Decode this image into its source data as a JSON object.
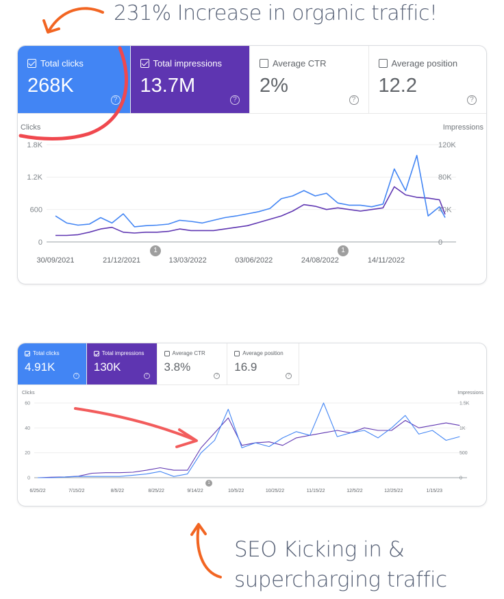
{
  "annotations": {
    "top_caption": "231% Increase in organic traffic!",
    "bottom_caption_line1": "SEO Kicking in &",
    "bottom_caption_line2": "supercharging traffic",
    "arrow_color": "#f26522",
    "highlight_color": "#f0484e",
    "caption_color": "#566075"
  },
  "colors": {
    "clicks": "#4285f4",
    "impressions": "#5e35b1"
  },
  "report1": {
    "metrics": [
      {
        "label": "Total clicks",
        "value": "268K",
        "checked": true,
        "help_icon": "help-circle-icon"
      },
      {
        "label": "Total impressions",
        "value": "13.7M",
        "checked": true,
        "help_icon": "help-circle-icon"
      },
      {
        "label": "Average CTR",
        "value": "2%",
        "checked": false,
        "help_icon": "help-circle-icon"
      },
      {
        "label": "Average position",
        "value": "12.2",
        "checked": false,
        "help_icon": "help-circle-icon"
      }
    ],
    "help_glyph": "?",
    "annotation_badges": [
      "1",
      "1"
    ]
  },
  "report2": {
    "metrics": [
      {
        "label": "Total clicks",
        "value": "4.91K",
        "checked": true
      },
      {
        "label": "Total impressions",
        "value": "130K",
        "checked": true
      },
      {
        "label": "Average CTR",
        "value": "3.8%",
        "checked": false
      },
      {
        "label": "Average position",
        "value": "16.9",
        "checked": false
      }
    ],
    "help_glyph": "?",
    "annotation_badges": [
      "1"
    ]
  },
  "chart_data": [
    {
      "type": "line",
      "ylabel": "Clicks",
      "y2label": "Impressions",
      "ylim": [
        0,
        1800
      ],
      "y2lim": [
        0,
        120000
      ],
      "yticks": [
        "0",
        "600",
        "1.2K",
        "1.8K"
      ],
      "y2ticks": [
        "0",
        "40K",
        "80K",
        "120K"
      ],
      "xticks": [
        "30/09/2021",
        "21/12/2021",
        "13/03/2022",
        "03/06/2022",
        "24/08/2022",
        "14/11/2022"
      ],
      "grid": true,
      "x": [
        "2021-09-30",
        "2021-10-14",
        "2021-10-28",
        "2021-11-11",
        "2021-11-25",
        "2021-12-09",
        "2021-12-23",
        "2022-01-06",
        "2022-01-20",
        "2022-02-03",
        "2022-02-17",
        "2022-03-03",
        "2022-03-17",
        "2022-03-31",
        "2022-04-14",
        "2022-04-28",
        "2022-05-12",
        "2022-05-26",
        "2022-06-09",
        "2022-06-23",
        "2022-07-07",
        "2022-07-21",
        "2022-08-04",
        "2022-08-18",
        "2022-09-01",
        "2022-09-15",
        "2022-09-29",
        "2022-10-13",
        "2022-10-27",
        "2022-11-10",
        "2022-11-24",
        "2022-12-08",
        "2022-12-22",
        "2023-01-05",
        "2023-01-19",
        "2023-01-26"
      ],
      "series": [
        {
          "name": "Clicks",
          "axis": "left",
          "values": [
            480,
            350,
            310,
            330,
            450,
            350,
            520,
            280,
            300,
            310,
            330,
            400,
            380,
            350,
            400,
            450,
            480,
            520,
            560,
            620,
            800,
            850,
            950,
            850,
            900,
            720,
            680,
            680,
            650,
            700,
            1350,
            950,
            1600,
            480,
            650,
            450
          ]
        },
        {
          "name": "Impressions",
          "axis": "right",
          "values": [
            8000,
            8000,
            9000,
            12000,
            16000,
            18000,
            12000,
            11000,
            12000,
            12000,
            13000,
            16000,
            14000,
            14000,
            14000,
            16000,
            18000,
            20000,
            24000,
            28000,
            32000,
            38000,
            46000,
            44000,
            40000,
            42000,
            40000,
            38000,
            40000,
            42000,
            68000,
            58000,
            55000,
            54000,
            52000,
            34000
          ]
        }
      ]
    },
    {
      "type": "line",
      "ylabel": "Clicks",
      "y2label": "Impressions",
      "ylim": [
        0,
        60
      ],
      "y2lim": [
        0,
        1500
      ],
      "yticks": [
        "0",
        "20",
        "40",
        "60"
      ],
      "y2ticks": [
        "0",
        "500",
        "1K",
        "1.5K"
      ],
      "xticks": [
        "6/25/22",
        "7/15/22",
        "8/5/22",
        "8/25/22",
        "9/14/22",
        "10/5/22",
        "10/25/22",
        "11/15/22",
        "12/5/22",
        "12/25/22",
        "1/15/23"
      ],
      "grid": true,
      "x": [
        "2022-06-25",
        "2022-07-02",
        "2022-07-09",
        "2022-07-16",
        "2022-07-23",
        "2022-07-30",
        "2022-08-06",
        "2022-08-13",
        "2022-08-20",
        "2022-08-27",
        "2022-09-03",
        "2022-09-10",
        "2022-09-17",
        "2022-09-24",
        "2022-10-01",
        "2022-10-08",
        "2022-10-15",
        "2022-10-22",
        "2022-10-29",
        "2022-11-05",
        "2022-11-12",
        "2022-11-19",
        "2022-11-26",
        "2022-12-03",
        "2022-12-10",
        "2022-12-17",
        "2022-12-24",
        "2022-12-31",
        "2023-01-07",
        "2023-01-14",
        "2023-01-21",
        "2023-01-28"
      ],
      "series": [
        {
          "name": "Clicks",
          "axis": "left",
          "values": [
            0,
            0,
            0.5,
            1,
            1,
            1,
            1,
            2,
            3,
            5,
            1,
            3,
            20,
            30,
            55,
            24,
            28,
            25,
            32,
            37,
            34,
            60,
            33,
            36,
            38,
            32,
            40,
            50,
            35,
            38,
            30,
            33
          ]
        },
        {
          "name": "Impressions",
          "axis": "right",
          "values": [
            0,
            10,
            15,
            30,
            90,
            100,
            100,
            110,
            150,
            200,
            150,
            150,
            600,
            900,
            1200,
            650,
            700,
            720,
            650,
            800,
            850,
            900,
            950,
            900,
            1000,
            950,
            950,
            1150,
            1000,
            1050,
            1100,
            1050
          ]
        }
      ]
    }
  ]
}
